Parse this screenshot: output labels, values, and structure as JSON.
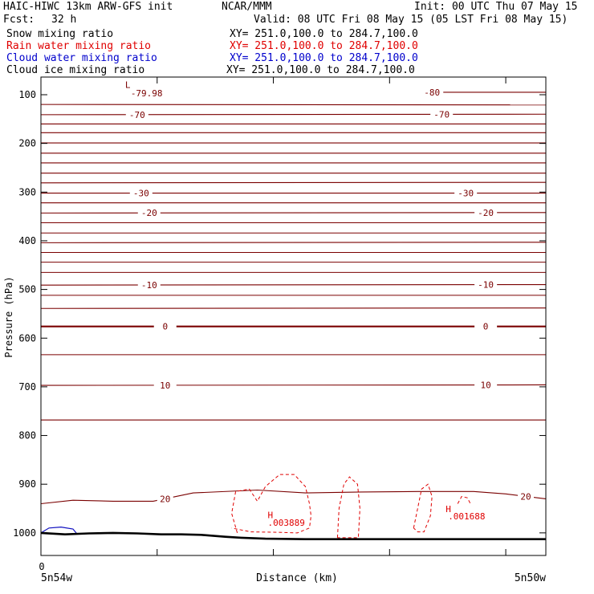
{
  "header": {
    "model": "HAIC-HIWC 13km ARW-GFS init",
    "org": "NCAR/MMM",
    "init": "Init: 00 UTC Thu 07 May 15",
    "fcst_label": "Fcst:",
    "fcst_value": "32 h",
    "valid": "Valid: 08 UTC Fri 08 May 15 (05 LST Fri 08 May 15)"
  },
  "fields": [
    {
      "name": "Snow mixing ratio",
      "xy": "XY= 251.0,100.0 to 284.7,100.0",
      "color": "#000000"
    },
    {
      "name": "Rain water mixing ratio",
      "xy": "XY= 251.0,100.0 to 284.7,100.0",
      "color": "#e00000"
    },
    {
      "name": "Cloud water mixing ratio",
      "xy": "XY= 251.0,100.0 to 284.7,100.0",
      "color": "#0000cc"
    },
    {
      "name": "Cloud ice mixing ratio",
      "xy": "XY= 251.0,100.0 to 284.7,100.0",
      "color": "#000000"
    }
  ],
  "colors": {
    "temperature": "#7a0000",
    "rain": "#e00000",
    "cloud_water": "#1010c0",
    "terrain": "#000000"
  },
  "chart_data": {
    "type": "line",
    "title": "",
    "xlabel": "Distance (km)",
    "ylabel": "Pressure (hPa)",
    "xlim": [
      0,
      630
    ],
    "ylim": [
      1050,
      75
    ],
    "x_tick_labels": [
      "0"
    ],
    "x_ticks": [
      0,
      145,
      290,
      435,
      580
    ],
    "x_end_labels": [
      "5n54w",
      "5n50w"
    ],
    "y_ticks": [
      100,
      200,
      300,
      400,
      500,
      600,
      700,
      800,
      900,
      1000
    ],
    "y_tick_labels": [
      "100",
      "200",
      "300",
      "400",
      "500",
      "600",
      "700",
      "800",
      "900",
      "1000"
    ],
    "isotherms": [
      {
        "y": [
          95,
          95
        ],
        "label": "-80",
        "label_x": [
          488
        ]
      },
      {
        "y": [
          120,
          121
        ]
      },
      {
        "y": [
          141,
          140
        ],
        "label": "-70",
        "label_x": [
          120,
          500
        ]
      },
      {
        "y": [
          160,
          160
        ]
      },
      {
        "y": [
          178,
          178
        ]
      },
      {
        "y": [
          199,
          199
        ]
      },
      {
        "y": [
          220,
          220
        ]
      },
      {
        "y": [
          240,
          240
        ]
      },
      {
        "y": [
          261,
          261
        ]
      },
      {
        "y": [
          281,
          280
        ]
      },
      {
        "y": [
          302,
          302
        ],
        "label": "-30",
        "label_x": [
          125,
          530
        ]
      },
      {
        "y": [
          322,
          322
        ]
      },
      {
        "y": [
          343,
          342
        ],
        "label": "-20",
        "label_x": [
          135,
          555
        ]
      },
      {
        "y": [
          363,
          363
        ]
      },
      {
        "y": [
          384,
          384
        ]
      },
      {
        "y": [
          404,
          403
        ]
      },
      {
        "y": [
          424,
          424
        ]
      },
      {
        "y": [
          444,
          444
        ]
      },
      {
        "y": [
          465,
          465
        ]
      },
      {
        "y": [
          491,
          490
        ],
        "label": "-10",
        "label_x": [
          135,
          555
        ]
      },
      {
        "y": [
          512,
          512
        ]
      },
      {
        "y": [
          539,
          538
        ]
      },
      {
        "y": [
          576,
          576
        ],
        "label": "0",
        "label_x": [
          155,
          555
        ],
        "bold": true
      },
      {
        "y": [
          634,
          634
        ]
      },
      {
        "y": [
          697,
          696
        ],
        "label": "10",
        "label_x": [
          155,
          555
        ]
      },
      {
        "y": [
          768,
          768
        ]
      }
    ],
    "isotherm_20c": {
      "label": "20",
      "label_x": [
        155,
        605
      ],
      "x": [
        0,
        40,
        90,
        140,
        190,
        270,
        330,
        400,
        470,
        540,
        580,
        630
      ],
      "y": [
        940,
        933,
        935,
        935,
        918,
        912,
        918,
        916,
        915,
        915,
        920,
        930
      ]
    },
    "rain_contours": [
      {
        "x": [
          245,
          238,
          243,
          260,
          270,
          280,
          298,
          316,
          330,
          335,
          337,
          335,
          320,
          300,
          262,
          238
        ],
        "y": [
          1000,
          960,
          915,
          910,
          935,
          905,
          880,
          880,
          905,
          940,
          965,
          990,
          1000,
          999,
          998,
          990
        ]
      },
      {
        "x": [
          370,
          372,
          378,
          385,
          395,
          398,
          396,
          370
        ],
        "y": [
          1010,
          950,
          900,
          885,
          900,
          950,
          1010,
          1010
        ]
      },
      {
        "x": [
          465,
          470,
          475,
          483,
          488,
          486,
          478,
          470,
          465
        ],
        "y": [
          990,
          950,
          910,
          900,
          925,
          965,
          998,
          998,
          990
        ]
      },
      {
        "x": [
          520,
          525,
          532,
          536
        ],
        "y": [
          940,
          925,
          928,
          940
        ]
      }
    ],
    "cloud_water_contour": {
      "x": [
        0,
        10,
        25,
        40,
        45
      ],
      "y": [
        1000,
        990,
        988,
        992,
        1002
      ]
    },
    "terrain": {
      "x": [
        0,
        30,
        60,
        90,
        120,
        150,
        175,
        200,
        230,
        250,
        280,
        330,
        400,
        480,
        540,
        580,
        630
      ],
      "y": [
        1000,
        1003,
        1001,
        1000,
        1001,
        1003,
        1003,
        1004,
        1008,
        1010,
        1012,
        1013,
        1013,
        1013,
        1013,
        1013,
        1013
      ]
    },
    "annotations": [
      {
        "text": "L",
        "x": 105,
        "y": 86
      },
      {
        "text": "-79.98",
        "x": 112,
        "y": 103
      },
      {
        "text": "H",
        "x": 283,
        "y": 970
      },
      {
        "text": ".003889",
        "x": 283,
        "y": 985
      },
      {
        "text": "H",
        "x": 505,
        "y": 957
      },
      {
        "text": ".001688",
        "x": 508,
        "y": 972
      }
    ]
  }
}
